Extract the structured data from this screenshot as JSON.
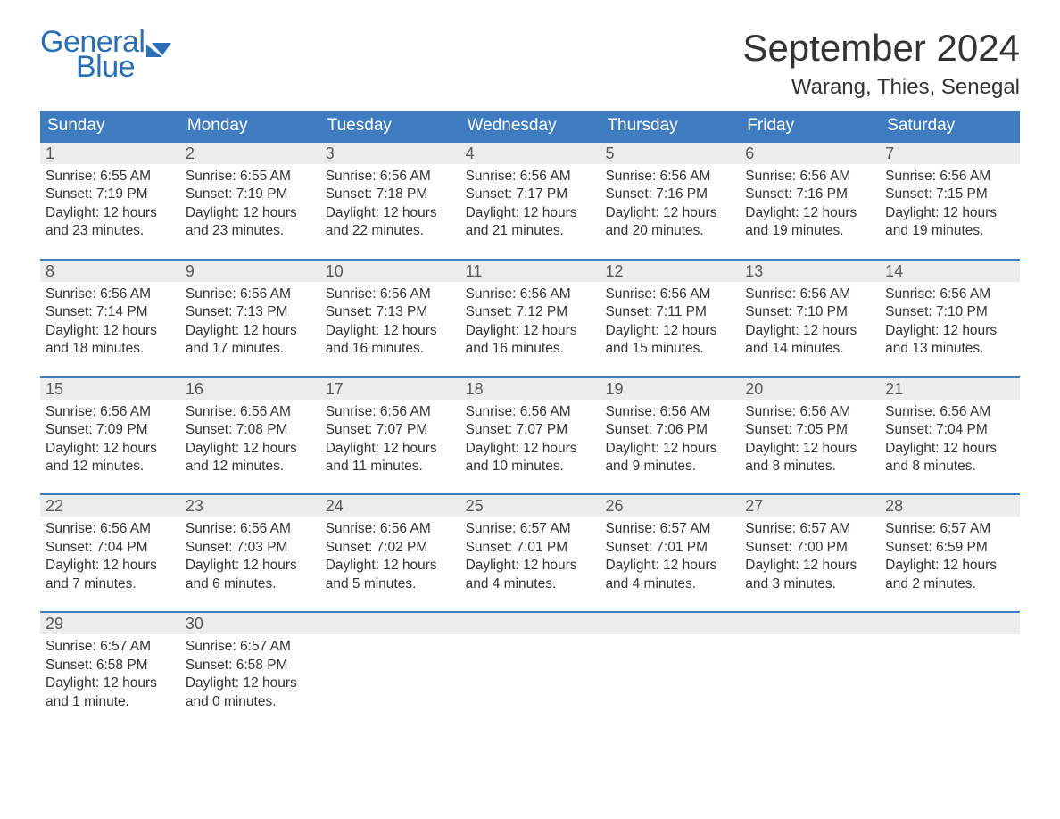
{
  "brand": {
    "word1": "General",
    "word2": "Blue",
    "logo_color": "#2a6fb5",
    "mark_color": "#2a6fb5"
  },
  "header": {
    "title": "September 2024",
    "location": "Warang, Thies, Senegal",
    "title_fontsize": 42,
    "location_fontsize": 24,
    "title_color": "#333333"
  },
  "calendar": {
    "header_bg": "#3f7bbf",
    "header_fg": "#ffffff",
    "day_strip_bg": "#ececec",
    "week_border_color": "#3f7bbf",
    "columns": [
      "Sunday",
      "Monday",
      "Tuesday",
      "Wednesday",
      "Thursday",
      "Friday",
      "Saturday"
    ],
    "weeks": [
      [
        {
          "n": "1",
          "sunrise": "6:55 AM",
          "sunset": "7:19 PM",
          "daylight": "12 hours and 23 minutes."
        },
        {
          "n": "2",
          "sunrise": "6:55 AM",
          "sunset": "7:19 PM",
          "daylight": "12 hours and 23 minutes."
        },
        {
          "n": "3",
          "sunrise": "6:56 AM",
          "sunset": "7:18 PM",
          "daylight": "12 hours and 22 minutes."
        },
        {
          "n": "4",
          "sunrise": "6:56 AM",
          "sunset": "7:17 PM",
          "daylight": "12 hours and 21 minutes."
        },
        {
          "n": "5",
          "sunrise": "6:56 AM",
          "sunset": "7:16 PM",
          "daylight": "12 hours and 20 minutes."
        },
        {
          "n": "6",
          "sunrise": "6:56 AM",
          "sunset": "7:16 PM",
          "daylight": "12 hours and 19 minutes."
        },
        {
          "n": "7",
          "sunrise": "6:56 AM",
          "sunset": "7:15 PM",
          "daylight": "12 hours and 19 minutes."
        }
      ],
      [
        {
          "n": "8",
          "sunrise": "6:56 AM",
          "sunset": "7:14 PM",
          "daylight": "12 hours and 18 minutes."
        },
        {
          "n": "9",
          "sunrise": "6:56 AM",
          "sunset": "7:13 PM",
          "daylight": "12 hours and 17 minutes."
        },
        {
          "n": "10",
          "sunrise": "6:56 AM",
          "sunset": "7:13 PM",
          "daylight": "12 hours and 16 minutes."
        },
        {
          "n": "11",
          "sunrise": "6:56 AM",
          "sunset": "7:12 PM",
          "daylight": "12 hours and 16 minutes."
        },
        {
          "n": "12",
          "sunrise": "6:56 AM",
          "sunset": "7:11 PM",
          "daylight": "12 hours and 15 minutes."
        },
        {
          "n": "13",
          "sunrise": "6:56 AM",
          "sunset": "7:10 PM",
          "daylight": "12 hours and 14 minutes."
        },
        {
          "n": "14",
          "sunrise": "6:56 AM",
          "sunset": "7:10 PM",
          "daylight": "12 hours and 13 minutes."
        }
      ],
      [
        {
          "n": "15",
          "sunrise": "6:56 AM",
          "sunset": "7:09 PM",
          "daylight": "12 hours and 12 minutes."
        },
        {
          "n": "16",
          "sunrise": "6:56 AM",
          "sunset": "7:08 PM",
          "daylight": "12 hours and 12 minutes."
        },
        {
          "n": "17",
          "sunrise": "6:56 AM",
          "sunset": "7:07 PM",
          "daylight": "12 hours and 11 minutes."
        },
        {
          "n": "18",
          "sunrise": "6:56 AM",
          "sunset": "7:07 PM",
          "daylight": "12 hours and 10 minutes."
        },
        {
          "n": "19",
          "sunrise": "6:56 AM",
          "sunset": "7:06 PM",
          "daylight": "12 hours and 9 minutes."
        },
        {
          "n": "20",
          "sunrise": "6:56 AM",
          "sunset": "7:05 PM",
          "daylight": "12 hours and 8 minutes."
        },
        {
          "n": "21",
          "sunrise": "6:56 AM",
          "sunset": "7:04 PM",
          "daylight": "12 hours and 8 minutes."
        }
      ],
      [
        {
          "n": "22",
          "sunrise": "6:56 AM",
          "sunset": "7:04 PM",
          "daylight": "12 hours and 7 minutes."
        },
        {
          "n": "23",
          "sunrise": "6:56 AM",
          "sunset": "7:03 PM",
          "daylight": "12 hours and 6 minutes."
        },
        {
          "n": "24",
          "sunrise": "6:56 AM",
          "sunset": "7:02 PM",
          "daylight": "12 hours and 5 minutes."
        },
        {
          "n": "25",
          "sunrise": "6:57 AM",
          "sunset": "7:01 PM",
          "daylight": "12 hours and 4 minutes."
        },
        {
          "n": "26",
          "sunrise": "6:57 AM",
          "sunset": "7:01 PM",
          "daylight": "12 hours and 4 minutes."
        },
        {
          "n": "27",
          "sunrise": "6:57 AM",
          "sunset": "7:00 PM",
          "daylight": "12 hours and 3 minutes."
        },
        {
          "n": "28",
          "sunrise": "6:57 AM",
          "sunset": "6:59 PM",
          "daylight": "12 hours and 2 minutes."
        }
      ],
      [
        {
          "n": "29",
          "sunrise": "6:57 AM",
          "sunset": "6:58 PM",
          "daylight": "12 hours and 1 minute."
        },
        {
          "n": "30",
          "sunrise": "6:57 AM",
          "sunset": "6:58 PM",
          "daylight": "12 hours and 0 minutes."
        },
        null,
        null,
        null,
        null,
        null
      ]
    ],
    "labels": {
      "sunrise": "Sunrise:",
      "sunset": "Sunset:",
      "daylight": "Daylight:"
    }
  }
}
